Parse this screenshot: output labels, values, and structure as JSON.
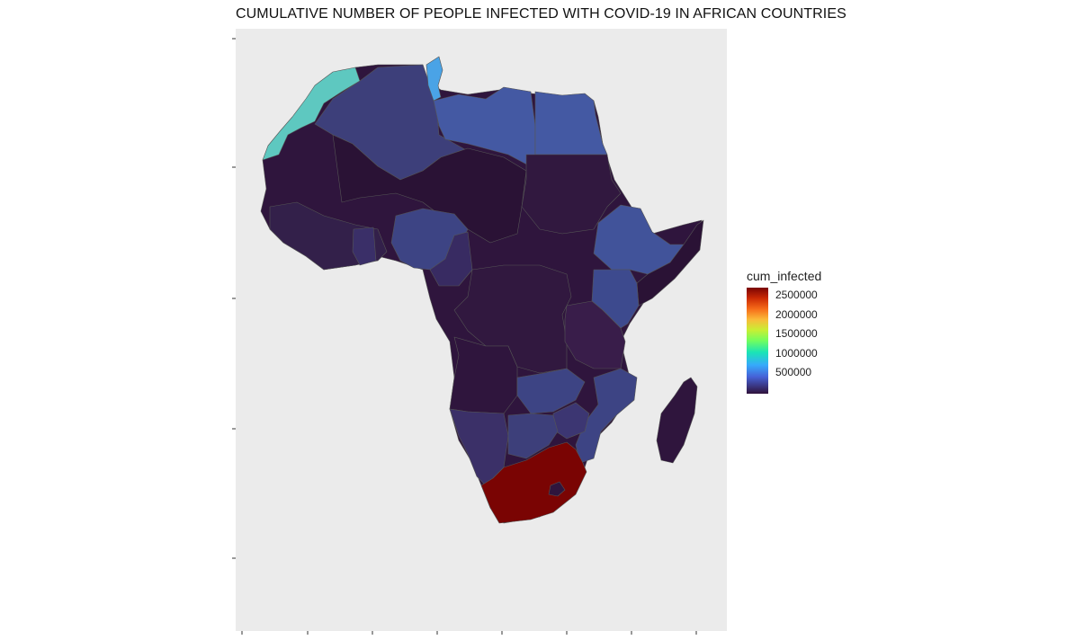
{
  "title": "CUMULATIVE NUMBER OF PEOPLE INFECTED WITH COVID-19 IN AFRICAN COUNTRIES",
  "legend": {
    "title": "cum_infected",
    "labels": [
      "2500000",
      "2000000",
      "1500000",
      "1000000",
      "500000"
    ],
    "scale": "turbo",
    "colors": {
      "low": "#30123b",
      "mid_low": "#4662d7",
      "mid": "#36aafb",
      "mid_high": "#72fe5e",
      "high": "#7a0403"
    }
  },
  "map": {
    "background": "#ebebeb",
    "regions": [
      {
        "name": "Morocco",
        "color": "#5ec8c0"
      },
      {
        "name": "Algeria",
        "color": "#3d3f7a"
      },
      {
        "name": "Tunisia",
        "color": "#4aa3e6"
      },
      {
        "name": "Libya",
        "color": "#4459a3"
      },
      {
        "name": "Egypt",
        "color": "#4459a3"
      },
      {
        "name": "Ethiopia",
        "color": "#41539a"
      },
      {
        "name": "Kenya",
        "color": "#3d4a8e"
      },
      {
        "name": "Nigeria",
        "color": "#3d4484"
      },
      {
        "name": "Zambia",
        "color": "#3d4484"
      },
      {
        "name": "South Africa",
        "color": "#7a0403"
      }
    ]
  }
}
